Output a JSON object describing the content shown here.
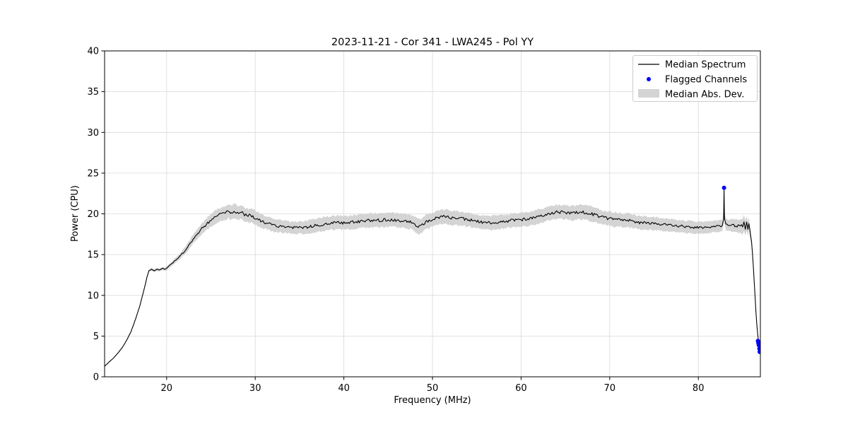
{
  "chart_data": {
    "type": "line",
    "title": "2023-11-21 - Cor 341 - LWA245 - Pol YY",
    "xlabel": "Frequency (MHz)",
    "ylabel": "Power (CPU)",
    "xlim": [
      13,
      87.0
    ],
    "ylim": [
      0,
      40
    ],
    "xticks": [
      20,
      30,
      40,
      50,
      60,
      70,
      80
    ],
    "yticks": [
      0,
      5,
      10,
      15,
      20,
      25,
      30,
      35,
      40
    ],
    "grid": true,
    "legend": [
      "Median Spectrum",
      "Flagged Channels",
      "Median Abs. Dev."
    ],
    "legend_position": "upper right",
    "colors": {
      "line": "#000000",
      "flagged": "#0000ff",
      "band": "#cccccc",
      "grid": "#d9d9d9"
    },
    "noise": 0.22,
    "series": [
      {
        "name": "Median Spectrum",
        "note": "points are [frequency_MHz, power_CPU, median_abs_dev]",
        "points": [
          [
            13,
            1.3,
            0.05
          ],
          [
            13.5,
            1.8,
            0.05
          ],
          [
            14,
            2.3,
            0.06
          ],
          [
            14.5,
            2.9,
            0.06
          ],
          [
            15,
            3.6,
            0.07
          ],
          [
            15.5,
            4.5,
            0.08
          ],
          [
            16,
            5.6,
            0.09
          ],
          [
            16.5,
            7.1,
            0.1
          ],
          [
            17,
            8.8,
            0.11
          ],
          [
            17.5,
            10.9,
            0.12
          ],
          [
            17.8,
            12.3,
            0.13
          ],
          [
            18,
            13.0,
            0.14
          ],
          [
            18.3,
            13.2,
            0.15
          ],
          [
            18.6,
            13.0,
            0.16
          ],
          [
            18.9,
            13.2,
            0.17
          ],
          [
            19.2,
            13.1,
            0.18
          ],
          [
            19.5,
            13.3,
            0.19
          ],
          [
            19.8,
            13.2,
            0.21
          ],
          [
            20.1,
            13.4,
            0.23
          ],
          [
            20.4,
            13.7,
            0.25
          ],
          [
            20.7,
            14.0,
            0.27
          ],
          [
            21,
            14.3,
            0.3
          ],
          [
            21.5,
            14.8,
            0.36
          ],
          [
            22,
            15.4,
            0.44
          ],
          [
            22.5,
            16.1,
            0.5
          ],
          [
            23,
            16.9,
            0.56
          ],
          [
            23.5,
            17.6,
            0.62
          ],
          [
            24,
            18.2,
            0.68
          ],
          [
            24.5,
            18.7,
            0.72
          ],
          [
            25,
            19.2,
            0.76
          ],
          [
            25.5,
            19.6,
            0.8
          ],
          [
            26,
            19.9,
            0.84
          ],
          [
            26.5,
            20.1,
            0.86
          ],
          [
            27,
            20.3,
            0.88
          ],
          [
            27.3,
            20.1,
            0.88
          ],
          [
            27.6,
            20.4,
            0.88
          ],
          [
            28,
            20.1,
            0.88
          ],
          [
            28.4,
            20.2,
            0.88
          ],
          [
            28.8,
            19.9,
            0.88
          ],
          [
            29.2,
            19.8,
            0.86
          ],
          [
            29.6,
            19.8,
            0.86
          ],
          [
            30,
            19.5,
            0.86
          ],
          [
            30.5,
            19.2,
            0.84
          ],
          [
            31,
            19.0,
            0.82
          ],
          [
            31.5,
            18.8,
            0.8
          ],
          [
            32,
            18.6,
            0.78
          ],
          [
            32.5,
            18.5,
            0.76
          ],
          [
            33,
            18.5,
            0.76
          ],
          [
            33.5,
            18.4,
            0.74
          ],
          [
            34,
            18.3,
            0.74
          ],
          [
            34.5,
            18.3,
            0.74
          ],
          [
            35,
            18.3,
            0.74
          ],
          [
            35.5,
            18.3,
            0.76
          ],
          [
            36,
            18.4,
            0.78
          ],
          [
            36.5,
            18.5,
            0.8
          ],
          [
            37,
            18.6,
            0.82
          ],
          [
            37.5,
            18.7,
            0.84
          ],
          [
            38,
            18.8,
            0.84
          ],
          [
            38.5,
            18.9,
            0.84
          ],
          [
            39,
            18.9,
            0.84
          ],
          [
            39.5,
            18.9,
            0.84
          ],
          [
            40,
            18.9,
            0.84
          ],
          [
            41,
            19.0,
            0.84
          ],
          [
            42,
            19.1,
            0.84
          ],
          [
            43,
            19.2,
            0.86
          ],
          [
            44,
            19.2,
            0.86
          ],
          [
            45,
            19.3,
            0.88
          ],
          [
            46,
            19.2,
            0.86
          ],
          [
            47,
            19.1,
            0.86
          ],
          [
            47.5,
            19.0,
            0.88
          ],
          [
            48,
            18.8,
            0.9
          ],
          [
            48.4,
            18.4,
            1.0
          ],
          [
            48.7,
            18.5,
            0.95
          ],
          [
            49,
            18.8,
            0.9
          ],
          [
            49.5,
            19.1,
            0.88
          ],
          [
            50,
            19.3,
            0.86
          ],
          [
            50.5,
            19.5,
            0.86
          ],
          [
            51,
            19.6,
            0.86
          ],
          [
            51.5,
            19.7,
            0.86
          ],
          [
            52,
            19.5,
            0.86
          ],
          [
            52.5,
            19.5,
            0.86
          ],
          [
            53,
            19.4,
            0.86
          ],
          [
            53.5,
            19.4,
            0.84
          ],
          [
            54,
            19.3,
            0.84
          ],
          [
            54.5,
            19.2,
            0.84
          ],
          [
            55,
            19.1,
            0.84
          ],
          [
            55.5,
            19.0,
            0.84
          ],
          [
            56,
            18.9,
            0.84
          ],
          [
            56.5,
            18.9,
            0.84
          ],
          [
            57,
            18.9,
            0.84
          ],
          [
            57.5,
            19.0,
            0.84
          ],
          [
            58,
            19.0,
            0.84
          ],
          [
            58.5,
            19.1,
            0.84
          ],
          [
            59,
            19.2,
            0.84
          ],
          [
            59.5,
            19.2,
            0.84
          ],
          [
            60,
            19.3,
            0.84
          ],
          [
            60.5,
            19.3,
            0.84
          ],
          [
            61,
            19.4,
            0.84
          ],
          [
            61.5,
            19.5,
            0.86
          ],
          [
            62,
            19.7,
            0.86
          ],
          [
            62.5,
            19.8,
            0.86
          ],
          [
            63,
            20.0,
            0.86
          ],
          [
            63.5,
            20.1,
            0.86
          ],
          [
            64,
            20.2,
            0.86
          ],
          [
            64.5,
            20.2,
            0.86
          ],
          [
            65,
            20.2,
            0.88
          ],
          [
            65.5,
            20.1,
            0.88
          ],
          [
            66,
            20.1,
            0.9
          ],
          [
            66.5,
            20.2,
            0.9
          ],
          [
            67,
            20.2,
            0.9
          ],
          [
            67.5,
            20.1,
            0.9
          ],
          [
            68,
            20.0,
            0.9
          ],
          [
            68.5,
            19.8,
            0.9
          ],
          [
            69,
            19.6,
            0.88
          ],
          [
            69.5,
            19.5,
            0.86
          ],
          [
            70,
            19.4,
            0.86
          ],
          [
            70.5,
            19.3,
            0.86
          ],
          [
            71,
            19.3,
            0.84
          ],
          [
            71.5,
            19.2,
            0.84
          ],
          [
            72,
            19.2,
            0.84
          ],
          [
            72.5,
            19.1,
            0.82
          ],
          [
            73,
            19.0,
            0.82
          ],
          [
            73.5,
            18.9,
            0.8
          ],
          [
            74,
            18.9,
            0.8
          ],
          [
            74.5,
            18.8,
            0.8
          ],
          [
            75,
            18.8,
            0.8
          ],
          [
            75.5,
            18.7,
            0.8
          ],
          [
            76,
            18.7,
            0.78
          ],
          [
            76.5,
            18.6,
            0.78
          ],
          [
            77,
            18.6,
            0.78
          ],
          [
            77.5,
            18.5,
            0.78
          ],
          [
            78,
            18.5,
            0.76
          ],
          [
            78.5,
            18.4,
            0.76
          ],
          [
            79,
            18.4,
            0.76
          ],
          [
            79.5,
            18.3,
            0.76
          ],
          [
            80,
            18.3,
            0.76
          ],
          [
            80.5,
            18.3,
            0.74
          ],
          [
            81,
            18.4,
            0.72
          ],
          [
            81.5,
            18.4,
            0.7
          ],
          [
            82,
            18.5,
            0.7
          ],
          [
            82.4,
            18.5,
            0.68
          ],
          [
            82.7,
            18.6,
            0.66
          ],
          [
            82.85,
            19.5,
            0.6
          ],
          [
            82.9,
            23.0,
            0.5
          ],
          [
            82.95,
            19.5,
            0.6
          ],
          [
            83.1,
            18.7,
            0.68
          ],
          [
            83.5,
            18.6,
            0.72
          ],
          [
            84,
            18.6,
            0.78
          ],
          [
            84.5,
            18.5,
            0.84
          ],
          [
            85,
            18.5,
            0.9
          ],
          [
            85.15,
            18.9,
            0.9
          ],
          [
            85.3,
            18.3,
            0.9
          ],
          [
            85.45,
            18.9,
            0.9
          ],
          [
            85.6,
            18.2,
            0.85
          ],
          [
            85.7,
            18.8,
            0.8
          ],
          [
            85.8,
            18.0,
            0.6
          ],
          [
            85.9,
            17.4,
            0.5
          ],
          [
            86,
            16.5,
            0.45
          ],
          [
            86.1,
            15.2,
            0.4
          ],
          [
            86.2,
            13.6,
            0.35
          ],
          [
            86.3,
            11.8,
            0.3
          ],
          [
            86.4,
            9.8,
            0.25
          ],
          [
            86.5,
            8.0,
            0.2
          ],
          [
            86.6,
            6.4,
            0.16
          ],
          [
            86.7,
            5.2,
            0.13
          ],
          [
            86.8,
            4.3,
            0.11
          ],
          [
            86.9,
            3.6,
            0.1
          ],
          [
            87,
            3.0,
            0.08
          ]
        ]
      }
    ],
    "flagged": {
      "name": "Flagged Channels",
      "x": [
        82.9,
        86.72,
        86.78,
        86.82,
        86.88,
        86.92
      ],
      "y": [
        23.2,
        4.4,
        4.15,
        3.9,
        3.45,
        3.05
      ]
    }
  }
}
